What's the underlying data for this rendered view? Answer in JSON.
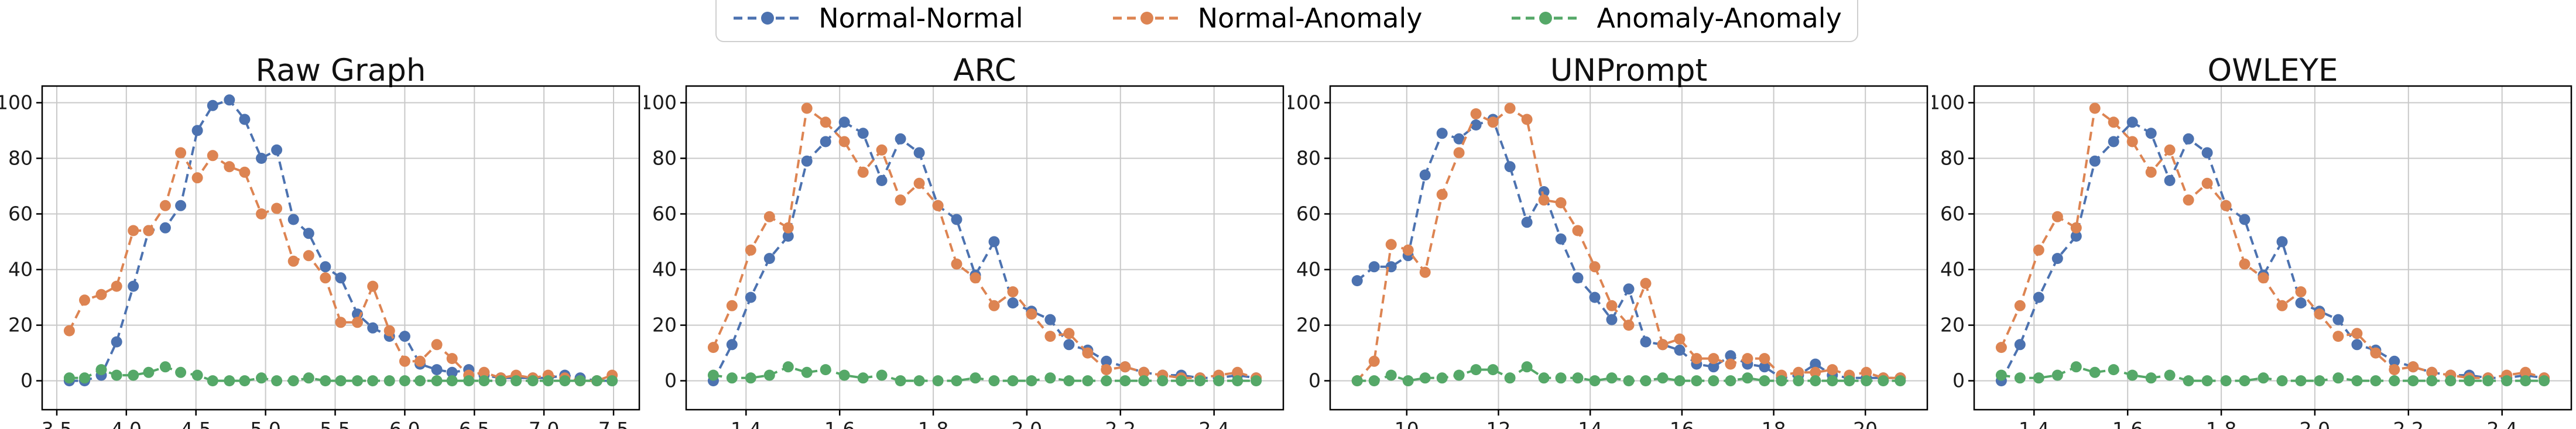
{
  "legend": {
    "items": [
      {
        "label": "Normal-Normal",
        "color": "#4C72B0"
      },
      {
        "label": "Normal-Anomaly",
        "color": "#DD8452"
      },
      {
        "label": "Anomaly-Anomaly",
        "color": "#55A868"
      }
    ]
  },
  "style": {
    "blue": "#4C72B0",
    "orange": "#DD8452",
    "green": "#55A868",
    "grid_color": "#c9c9c9",
    "axis_color": "#000000",
    "background": "#ffffff"
  },
  "chart_data": [
    {
      "type": "line",
      "title": "Raw Graph",
      "grid": true,
      "legend_position": "top-center-figure",
      "xlim": [
        3.395,
        7.685
      ],
      "ylim": [
        -10.4,
        106
      ],
      "xticks": [
        3.5,
        4.0,
        4.5,
        5.0,
        5.5,
        6.0,
        6.5,
        7.0,
        7.5
      ],
      "xtick_labels": [
        "3.5",
        "4.0",
        "4.5",
        "5.0",
        "5.5",
        "6.0",
        "6.5",
        "7.0",
        "7.5"
      ],
      "yticks": [
        0,
        20,
        40,
        60,
        80,
        100
      ],
      "x": [
        3.59,
        3.7,
        3.82,
        3.93,
        4.05,
        4.16,
        4.28,
        4.39,
        4.51,
        4.62,
        4.74,
        4.85,
        4.97,
        5.08,
        5.2,
        5.31,
        5.43,
        5.54,
        5.66,
        5.77,
        5.89,
        6.0,
        6.11,
        6.23,
        6.34,
        6.46,
        6.57,
        6.69,
        6.8,
        6.92,
        7.03,
        7.15,
        7.26,
        7.38,
        7.49
      ],
      "series": [
        {
          "name": "Normal-Normal",
          "color": "#4C72B0",
          "values": [
            0,
            0,
            2,
            14,
            34,
            54,
            55,
            63,
            90,
            99,
            101,
            94,
            80,
            83,
            58,
            53,
            41,
            37,
            24,
            19,
            16,
            16,
            6,
            4,
            3,
            4,
            2,
            1,
            1,
            1,
            1,
            2,
            1,
            0,
            0
          ]
        },
        {
          "name": "Normal-Anomaly",
          "color": "#DD8452",
          "values": [
            18,
            29,
            31,
            34,
            54,
            54,
            63,
            82,
            73,
            81,
            77,
            75,
            60,
            62,
            43,
            45,
            37,
            21,
            21,
            34,
            18,
            7,
            7,
            13,
            8,
            2,
            3,
            1,
            2,
            1,
            2,
            1,
            0,
            0,
            2
          ]
        },
        {
          "name": "Anomaly-Anomaly",
          "color": "#55A868",
          "values": [
            1,
            1,
            4,
            2,
            2,
            3,
            5,
            3,
            2,
            0,
            0,
            0,
            1,
            0,
            0,
            1,
            0,
            0,
            0,
            0,
            0,
            0,
            0,
            0,
            0,
            0,
            0,
            0,
            0,
            0,
            0,
            0,
            0,
            0,
            0
          ]
        }
      ]
    },
    {
      "type": "line",
      "title": "ARC",
      "grid": true,
      "legend_position": "top-center-figure",
      "xlim": [
        1.272,
        2.548
      ],
      "ylim": [
        -10.4,
        106
      ],
      "xticks": [
        1.4,
        1.6,
        1.8,
        2.0,
        2.2,
        2.4
      ],
      "xtick_labels": [
        "1.4",
        "1.6",
        "1.8",
        "2.0",
        "2.2",
        "2.4"
      ],
      "yticks": [
        0,
        20,
        40,
        60,
        80,
        100
      ],
      "x": [
        1.33,
        1.37,
        1.41,
        1.45,
        1.49,
        1.53,
        1.57,
        1.61,
        1.65,
        1.69,
        1.73,
        1.77,
        1.81,
        1.85,
        1.89,
        1.93,
        1.97,
        2.01,
        2.05,
        2.09,
        2.13,
        2.17,
        2.21,
        2.25,
        2.29,
        2.33,
        2.37,
        2.41,
        2.45,
        2.49
      ],
      "series": [
        {
          "name": "Normal-Normal",
          "color": "#4C72B0",
          "values": [
            0,
            13,
            30,
            44,
            52,
            79,
            86,
            93,
            89,
            72,
            87,
            82,
            63,
            58,
            38,
            50,
            28,
            25,
            22,
            13,
            11,
            7,
            5,
            3,
            2,
            2,
            1,
            1,
            2,
            1
          ]
        },
        {
          "name": "Normal-Anomaly",
          "color": "#DD8452",
          "values": [
            12,
            27,
            47,
            59,
            55,
            98,
            93,
            86,
            75,
            83,
            65,
            71,
            63,
            42,
            37,
            27,
            32,
            24,
            16,
            17,
            10,
            4,
            5,
            3,
            2,
            1,
            1,
            2,
            3,
            1
          ]
        },
        {
          "name": "Anomaly-Anomaly",
          "color": "#55A868",
          "values": [
            2,
            1,
            1,
            2,
            5,
            3,
            4,
            2,
            1,
            2,
            0,
            0,
            0,
            0,
            1,
            0,
            0,
            0,
            1,
            0,
            0,
            0,
            0,
            0,
            0,
            0,
            0,
            0,
            0,
            0
          ]
        }
      ]
    },
    {
      "type": "line",
      "title": "UNPrompt",
      "grid": true,
      "legend_position": "top-center-figure",
      "xlim": [
        8.33,
        21.35
      ],
      "ylim": [
        -10.4,
        106
      ],
      "xticks": [
        10,
        12,
        14,
        16,
        18,
        20
      ],
      "xtick_labels": [
        "10",
        "12",
        "14",
        "16",
        "18",
        "20"
      ],
      "yticks": [
        0,
        20,
        40,
        60,
        80,
        100
      ],
      "x": [
        8.92,
        9.29,
        9.66,
        10.03,
        10.4,
        10.77,
        11.14,
        11.51,
        11.88,
        12.25,
        12.62,
        12.99,
        13.36,
        13.73,
        14.1,
        14.47,
        14.84,
        15.21,
        15.58,
        15.95,
        16.32,
        16.69,
        17.06,
        17.43,
        17.8,
        18.17,
        18.54,
        18.91,
        19.28,
        19.65,
        20.02,
        20.39,
        20.76
      ],
      "series": [
        {
          "name": "Normal-Normal",
          "color": "#4C72B0",
          "values": [
            36,
            41,
            41,
            45,
            74,
            89,
            87,
            92,
            94,
            77,
            57,
            68,
            51,
            37,
            30,
            22,
            33,
            14,
            13,
            11,
            6,
            5,
            9,
            6,
            5,
            1,
            2,
            6,
            2,
            1,
            1,
            1,
            1
          ]
        },
        {
          "name": "Normal-Anomaly",
          "color": "#DD8452",
          "values": [
            0,
            7,
            49,
            47,
            39,
            67,
            82,
            96,
            93,
            98,
            94,
            65,
            64,
            54,
            41,
            27,
            20,
            35,
            13,
            15,
            8,
            8,
            6,
            8,
            8,
            2,
            3,
            3,
            4,
            2,
            3,
            1,
            1
          ]
        },
        {
          "name": "Anomaly-Anomaly",
          "color": "#55A868",
          "values": [
            0,
            0,
            2,
            0,
            1,
            1,
            2,
            4,
            4,
            1,
            5,
            1,
            1,
            1,
            0,
            1,
            0,
            0,
            1,
            0,
            0,
            0,
            0,
            1,
            0,
            0,
            0,
            0,
            0,
            0,
            0,
            0,
            0
          ]
        }
      ]
    },
    {
      "type": "line",
      "title": "OWLEYE",
      "grid": true,
      "legend_position": "top-center-figure",
      "xlim": [
        1.272,
        2.548
      ],
      "ylim": [
        -10.4,
        106
      ],
      "xticks": [
        1.4,
        1.6,
        1.8,
        2.0,
        2.2,
        2.4
      ],
      "xtick_labels": [
        "1.4",
        "1.6",
        "1.8",
        "2.0",
        "2.2",
        "2.4"
      ],
      "yticks": [
        0,
        20,
        40,
        60,
        80,
        100
      ],
      "x": [
        1.33,
        1.37,
        1.41,
        1.45,
        1.49,
        1.53,
        1.57,
        1.61,
        1.65,
        1.69,
        1.73,
        1.77,
        1.81,
        1.85,
        1.89,
        1.93,
        1.97,
        2.01,
        2.05,
        2.09,
        2.13,
        2.17,
        2.21,
        2.25,
        2.29,
        2.33,
        2.37,
        2.41,
        2.45,
        2.49
      ],
      "series": [
        {
          "name": "Normal-Normal",
          "color": "#4C72B0",
          "values": [
            0,
            13,
            30,
            44,
            52,
            79,
            86,
            93,
            89,
            72,
            87,
            82,
            63,
            58,
            38,
            50,
            28,
            25,
            22,
            13,
            11,
            7,
            5,
            3,
            2,
            2,
            1,
            1,
            2,
            1
          ]
        },
        {
          "name": "Normal-Anomaly",
          "color": "#DD8452",
          "values": [
            12,
            27,
            47,
            59,
            55,
            98,
            93,
            86,
            75,
            83,
            65,
            71,
            63,
            42,
            37,
            27,
            32,
            24,
            16,
            17,
            10,
            4,
            5,
            3,
            2,
            1,
            1,
            2,
            3,
            1
          ]
        },
        {
          "name": "Anomaly-Anomaly",
          "color": "#55A868",
          "values": [
            2,
            1,
            1,
            2,
            5,
            3,
            4,
            2,
            1,
            2,
            0,
            0,
            0,
            0,
            1,
            0,
            0,
            0,
            1,
            0,
            0,
            0,
            0,
            0,
            0,
            0,
            0,
            0,
            0,
            0
          ]
        }
      ]
    }
  ]
}
